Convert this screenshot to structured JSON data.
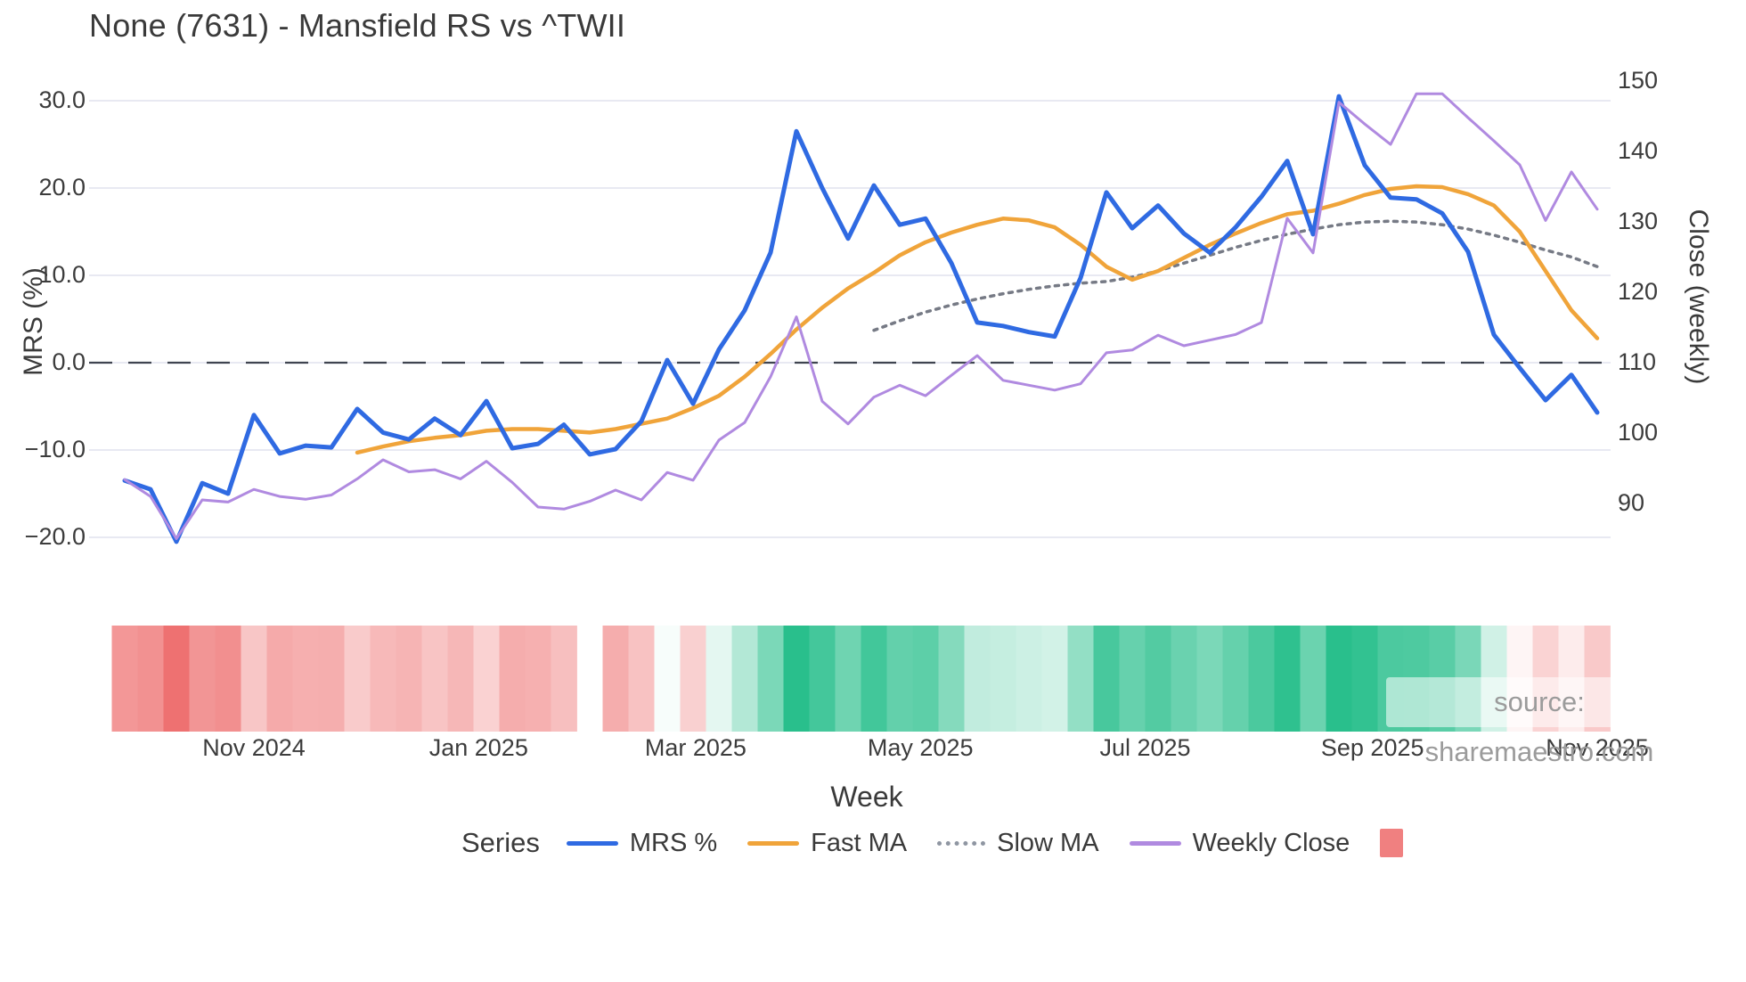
{
  "title": "None (7631) - Mansfield RS vs ^TWII",
  "axes": {
    "left": {
      "title": "MRS (%)",
      "tick_labels": [
        "30.0",
        "20.0",
        "10.0",
        "0.0",
        "−10.0",
        "−20.0"
      ],
      "tick_values": [
        30,
        20,
        10,
        0,
        -10,
        -20
      ]
    },
    "right": {
      "title": "Close (weekly)",
      "tick_labels": [
        "150",
        "140",
        "130",
        "120",
        "110",
        "100",
        "90"
      ],
      "tick_values": [
        150,
        140,
        130,
        120,
        110,
        100,
        90
      ]
    },
    "x": {
      "title": "Week",
      "tick_labels": [
        "Nov 2024",
        "Jan 2025",
        "Mar 2025",
        "May 2025",
        "Jul 2025",
        "Sep 2025",
        "Nov 2025"
      ],
      "tick_weeks": [
        5.0,
        13.7,
        22.1,
        30.8,
        39.5,
        48.3,
        57.0
      ]
    }
  },
  "chart_data": {
    "type": "line",
    "x_unit": "week_index",
    "n_weeks": 58,
    "ylim_left": [
      -24,
      33
    ],
    "ylim_right": [
      86,
      152
    ],
    "grid": "horizontal-only",
    "zero_line": {
      "axis": "left",
      "value": 0,
      "style": "dashed",
      "color": "#3f4450"
    },
    "series": [
      {
        "name": "MRS %",
        "axis": "left",
        "color": "#2f6ae2",
        "style": "solid",
        "width": 5,
        "start_week": 0,
        "values": [
          -13.5,
          -14.5,
          -20.5,
          -13.8,
          -15.0,
          -6.0,
          -10.4,
          -9.5,
          -9.7,
          -5.3,
          -8.0,
          -8.8,
          -6.4,
          -8.3,
          -4.4,
          -9.8,
          -9.3,
          -7.1,
          -10.5,
          -9.9,
          -6.7,
          0.3,
          -4.7,
          1.5,
          6.0,
          12.6,
          26.5,
          20.0,
          14.2,
          20.3,
          15.8,
          16.5,
          11.4,
          4.6,
          4.2,
          3.5,
          3.0,
          9.7,
          19.5,
          15.4,
          18.0,
          14.8,
          12.6,
          15.5,
          19.0,
          23.1,
          14.7,
          30.5,
          22.6,
          18.9,
          18.7,
          17.1,
          12.7,
          3.2,
          -0.6,
          -4.3,
          -1.4,
          -5.7
        ]
      },
      {
        "name": "Fast MA",
        "axis": "left",
        "color": "#f0a43a",
        "style": "solid",
        "width": 4.5,
        "start_week": 9,
        "values": [
          -10.3,
          -9.6,
          -9.0,
          -8.6,
          -8.3,
          -7.8,
          -7.6,
          -7.6,
          -7.8,
          -8.0,
          -7.6,
          -7.0,
          -6.4,
          -5.2,
          -3.8,
          -1.6,
          1.0,
          3.8,
          6.3,
          8.5,
          10.3,
          12.3,
          13.8,
          14.9,
          15.8,
          16.5,
          16.3,
          15.5,
          13.5,
          11.0,
          9.5,
          10.5,
          12.0,
          13.5,
          14.8,
          16.0,
          17.0,
          17.4,
          18.2,
          19.2,
          19.9,
          20.2,
          20.1,
          19.3,
          18.0,
          15.0,
          10.5,
          6.0,
          2.8
        ]
      },
      {
        "name": "Slow MA",
        "axis": "left",
        "color": "#767a85",
        "style": "dotted",
        "width": 3.5,
        "start_week": 29,
        "values": [
          3.7,
          4.8,
          5.8,
          6.6,
          7.3,
          7.9,
          8.4,
          8.8,
          9.1,
          9.3,
          9.8,
          10.5,
          11.4,
          12.3,
          13.2,
          14.0,
          14.7,
          15.3,
          15.8,
          16.1,
          16.2,
          16.1,
          15.8,
          15.3,
          14.6,
          13.8,
          12.9,
          12.1,
          11.0
        ]
      },
      {
        "name": "Weekly Close",
        "axis": "right",
        "color": "#b08ae0",
        "style": "solid",
        "width": 3,
        "start_week": 0,
        "values": [
          93.4,
          91.0,
          85.0,
          90.5,
          90.2,
          92.0,
          91.0,
          90.6,
          91.2,
          93.5,
          96.2,
          94.5,
          94.8,
          93.5,
          96.0,
          93.0,
          89.5,
          89.2,
          90.3,
          91.9,
          90.5,
          94.4,
          93.3,
          99.0,
          101.5,
          108.0,
          116.5,
          104.5,
          101.3,
          105.1,
          106.8,
          105.3,
          108.2,
          111.0,
          107.5,
          106.8,
          106.1,
          107.0,
          111.4,
          111.8,
          113.9,
          112.4,
          113.2,
          114.0,
          115.7,
          130.5,
          125.6,
          147.0,
          143.9,
          141.0,
          148.2,
          148.2,
          144.8,
          141.5,
          138.1,
          130.2,
          137.1,
          131.8
        ]
      }
    ],
    "heatmap": {
      "source_series": "MRS %",
      "gap_weeks": [
        18
      ],
      "positive_color": "#29bf8c",
      "negative_color": "#ec5f5f",
      "scale_max": 24,
      "exponent": 0.75
    }
  },
  "legend": {
    "label": "Series",
    "items": [
      {
        "label": "MRS %",
        "swatch": "line",
        "color": "#2f6ae2"
      },
      {
        "label": "Fast MA",
        "swatch": "line",
        "color": "#f0a43a"
      },
      {
        "label": "Slow MA",
        "swatch": "dotted-line",
        "color": "#8f96a2"
      },
      {
        "label": "Weekly Close",
        "swatch": "line",
        "color": "#b08ae0"
      },
      {
        "label": "",
        "swatch": "square",
        "color": "#f08080"
      }
    ]
  },
  "source": {
    "text": "source: sharemaestro.com"
  },
  "colors": {
    "gridline": "#e8e9f2",
    "tick_text": "#3c3c3c",
    "title_text": "#3a3a3a",
    "source_text": "#9b9b9b"
  }
}
